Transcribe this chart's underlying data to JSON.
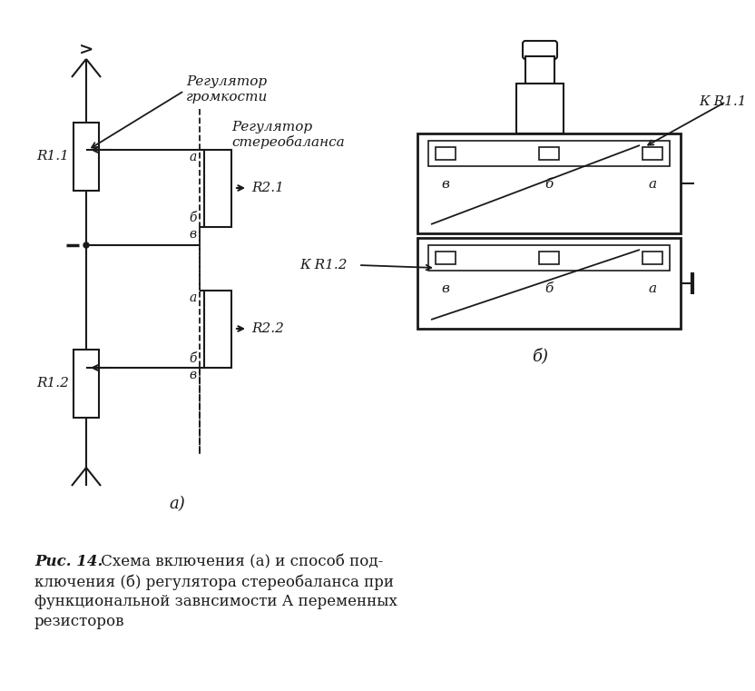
{
  "bg_color": "#ffffff",
  "line_color": "#1a1a1a",
  "label_a_diagram": "а)",
  "label_b_diagram": "б)",
  "label_R11": "R1.1",
  "label_R12": "R1.2",
  "label_R21": "R2.1",
  "label_R22": "R2.2",
  "label_KR11": "К R1.1",
  "label_KR12": "К R1.2",
  "reg_gromk_1": "Регулятор",
  "reg_gromk_2": "громкости",
  "reg_stereo_1": "Регулятор",
  "reg_stereo_2": "стереобаланса",
  "cap_bold": "Рис. 14.",
  "cap_line1": " Схема включения (а) и способ под-",
  "cap_line2": "ключения (б) регулятора стереобаланса при",
  "cap_line3": "функциональной завнсимости А переменных",
  "cap_line4": "резисторов"
}
